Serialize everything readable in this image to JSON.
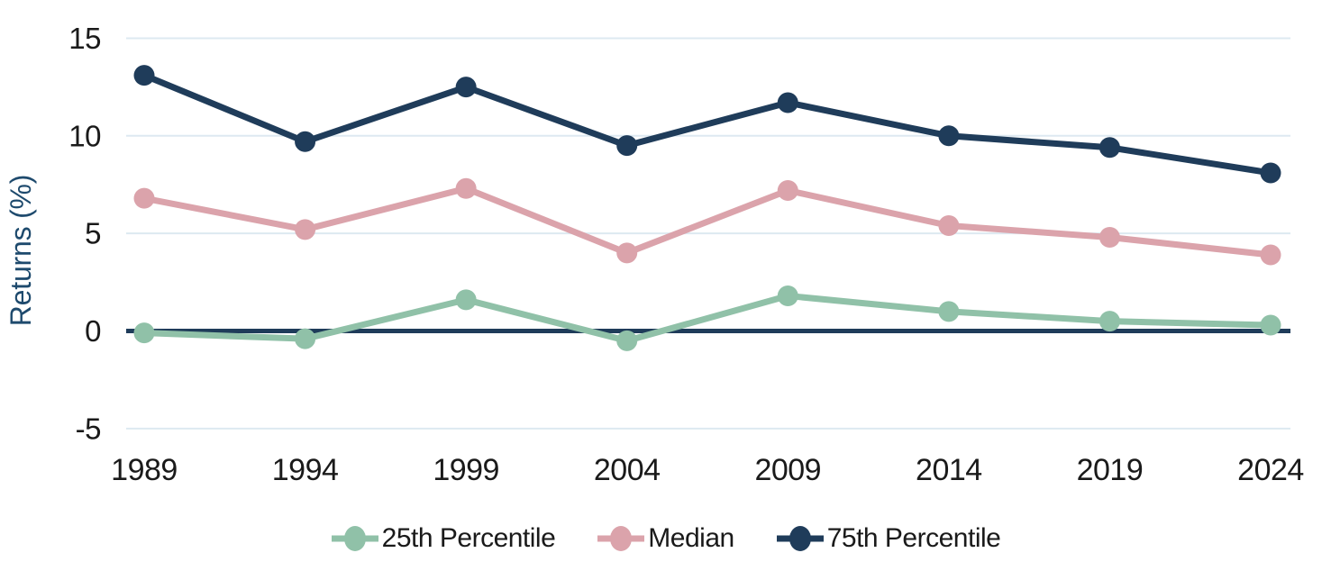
{
  "chart_data": {
    "type": "line",
    "title": "",
    "ylabel": "Returns (%)",
    "xlabel": "",
    "x_categories": [
      "1989",
      "1994",
      "1999",
      "2004",
      "2009",
      "2014",
      "2019",
      "2024"
    ],
    "yticks": [
      "15",
      "10",
      "5",
      "0",
      "-5"
    ],
    "ytick_values": [
      15,
      10,
      5,
      0,
      -5
    ],
    "ylim": [
      -6.6,
      16.1
    ],
    "grid": true,
    "zero_line": true,
    "legend_position": "bottom",
    "series": [
      {
        "name": "25th Percentile",
        "color": "#90c1a8",
        "values": [
          -0.1,
          -0.4,
          1.6,
          -0.5,
          1.8,
          1.0,
          0.5,
          0.3
        ]
      },
      {
        "name": "Median",
        "color": "#dba3ab",
        "values": [
          6.8,
          5.2,
          7.3,
          4.0,
          7.2,
          5.4,
          4.8,
          3.9
        ]
      },
      {
        "name": "75th Percentile",
        "color": "#1f3c5a",
        "values": [
          13.1,
          9.7,
          12.5,
          9.5,
          11.7,
          10.0,
          9.4,
          8.1
        ]
      }
    ]
  },
  "colors": {
    "background": "#ffffff",
    "gridline": "#dde9f1",
    "zero_line": "#1f3c5a",
    "tick_label": "#1a1a1a",
    "axis_label": "#1e4a6d",
    "legend_label": "#1a1a1a"
  }
}
